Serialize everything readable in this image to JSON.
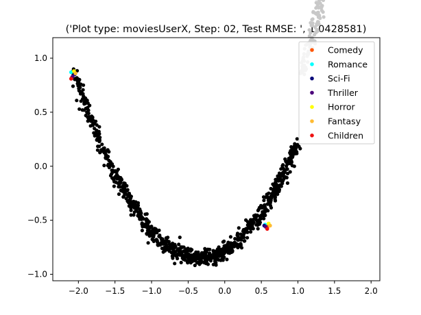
{
  "chart_data": {
    "type": "scatter",
    "title": "('Plot type: moviesUserX, Step: 02, Test RMSE: ', 1.0428581)",
    "xlabel": "",
    "ylabel": "",
    "xlim": [
      -2.35,
      2.12
    ],
    "ylim": [
      -1.06,
      1.19
    ],
    "xticks": [
      -2.0,
      -1.5,
      -1.0,
      -0.5,
      0.0,
      0.5,
      1.0,
      1.5,
      2.0
    ],
    "xtick_labels": [
      "−2.0",
      "−1.5",
      "−1.0",
      "−0.5",
      "0.0",
      "0.5",
      "1.0",
      "1.5",
      "2.0"
    ],
    "yticks": [
      -1.0,
      -0.5,
      0.0,
      0.5,
      1.0
    ],
    "ytick_labels": [
      "−1.0",
      "−0.5",
      "0.0",
      "0.5",
      "1.0"
    ],
    "grid": false,
    "legend_placement": "top-right",
    "background_series": [
      {
        "role": "users",
        "color": "#000000",
        "curve": "parabola",
        "x_range": [
          -2.05,
          1.0
        ],
        "vertex_x": -0.35,
        "vertex_y": -0.85,
        "end_y_left": 0.85,
        "noise": 0.04,
        "count": 900
      },
      {
        "role": "movies",
        "color": "#c8c8c8",
        "curve": "parabola",
        "x_range": [
          1.05,
          1.95
        ],
        "vertex_x": -0.35,
        "vertex_y": -0.85,
        "end_y_left": 0.85,
        "noise": 0.05,
        "count": 320
      }
    ],
    "series": [
      {
        "name": "Comedy",
        "color": "#ff5500",
        "points": [
          [
            -2.09,
            0.82
          ],
          [
            0.6,
            -0.54
          ],
          [
            0.58,
            -0.57
          ]
        ]
      },
      {
        "name": "Romance",
        "color": "#00ffff",
        "points": [
          [
            -2.1,
            0.87
          ],
          [
            0.55,
            -0.54
          ]
        ]
      },
      {
        "name": "Sci-Fi",
        "color": "#0b0b7a",
        "points": [
          [
            -2.05,
            0.85
          ],
          [
            0.54,
            -0.55
          ]
        ]
      },
      {
        "name": "Thriller",
        "color": "#4b007a",
        "points": [
          [
            -2.08,
            0.83
          ],
          [
            0.56,
            -0.56
          ]
        ]
      },
      {
        "name": "Horror",
        "color": "#ffff00",
        "points": [
          [
            -2.06,
            0.88
          ],
          [
            0.6,
            -0.53
          ]
        ]
      },
      {
        "name": "Fantasy",
        "color": "#ffbb33",
        "points": [
          [
            -2.04,
            0.86
          ],
          [
            0.62,
            -0.55
          ]
        ]
      },
      {
        "name": "Children",
        "color": "#ee1111",
        "points": [
          [
            -2.1,
            0.81
          ],
          [
            0.58,
            -0.58
          ]
        ]
      }
    ]
  }
}
